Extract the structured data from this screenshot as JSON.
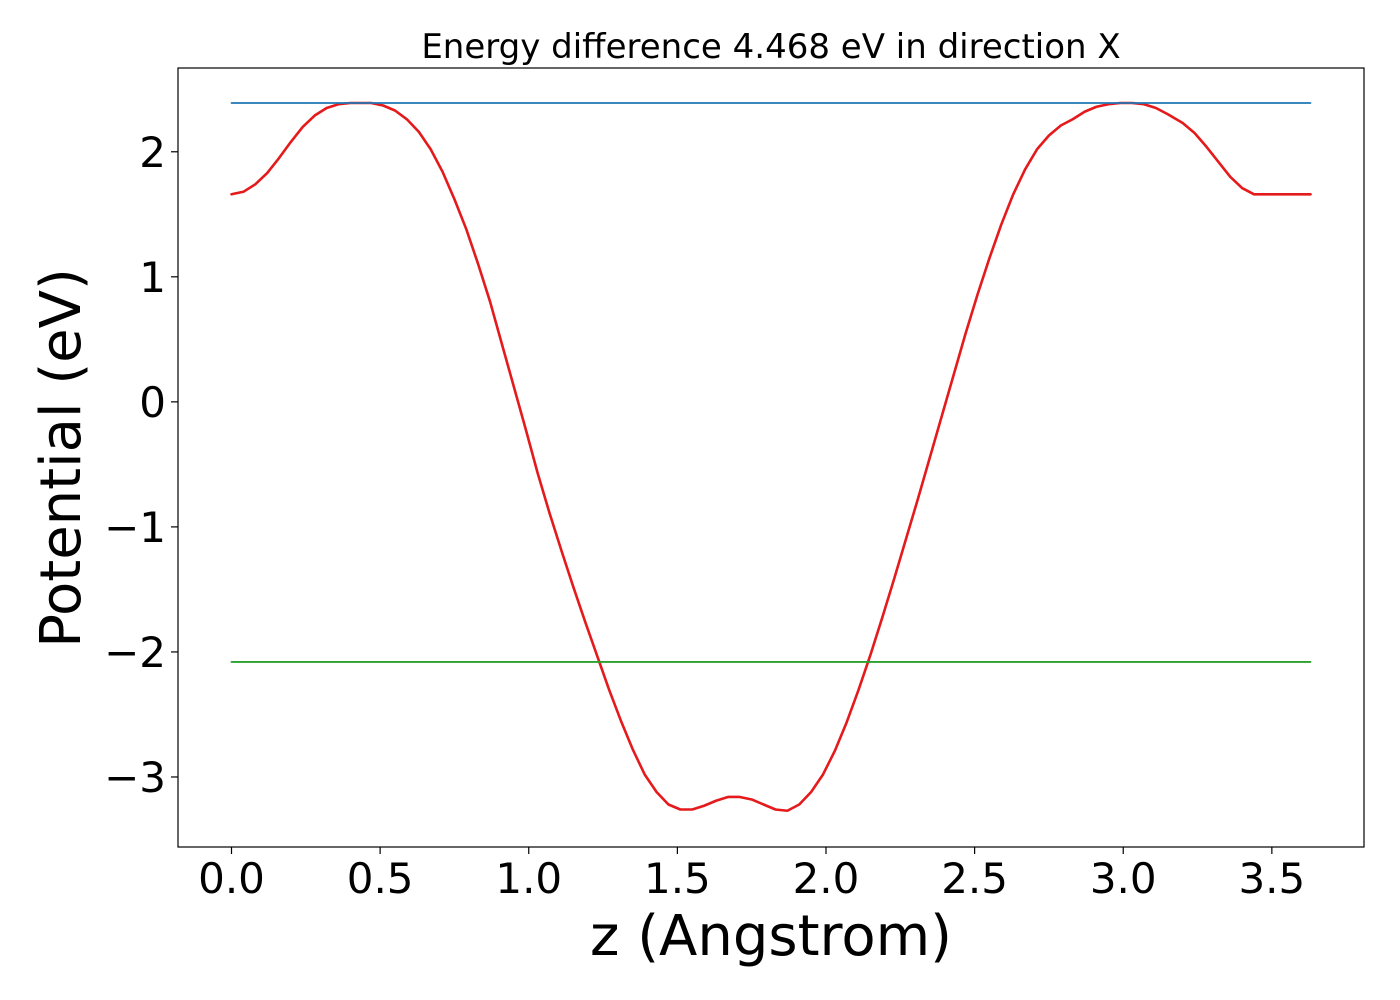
{
  "chart_data": {
    "type": "line",
    "title": "Energy difference 4.468 eV in direction X",
    "xlabel": "z (Angstrom)",
    "ylabel": "Potential (eV)",
    "xlim": [
      -0.18,
      3.81
    ],
    "ylim": [
      -3.56,
      2.67
    ],
    "x_ticks": [
      0.0,
      0.5,
      1.0,
      1.5,
      2.0,
      2.5,
      3.0,
      3.5
    ],
    "x_tick_labels": [
      "0.0",
      "0.5",
      "1.0",
      "1.5",
      "2.0",
      "2.5",
      "3.0",
      "3.5"
    ],
    "y_ticks": [
      -3,
      -2,
      -1,
      0,
      1,
      2
    ],
    "y_tick_labels": [
      "−3",
      "−2",
      "−1",
      "0",
      "1",
      "2"
    ],
    "grid": false,
    "series": [
      {
        "color": "#e41a1c",
        "x": [
          0.0,
          0.04,
          0.08,
          0.12,
          0.16,
          0.2,
          0.24,
          0.28,
          0.32,
          0.36,
          0.4,
          0.44,
          0.47,
          0.51,
          0.55,
          0.59,
          0.63,
          0.67,
          0.71,
          0.75,
          0.79,
          0.83,
          0.87,
          0.91,
          0.95,
          0.99,
          1.03,
          1.07,
          1.11,
          1.15,
          1.19,
          1.23,
          1.27,
          1.31,
          1.35,
          1.39,
          1.43,
          1.47,
          1.51,
          1.55,
          1.59,
          1.63,
          1.67,
          1.71,
          1.75,
          1.79,
          1.83,
          1.87,
          1.91,
          1.95,
          1.99,
          2.03,
          2.07,
          2.11,
          2.15,
          2.19,
          2.23,
          2.27,
          2.31,
          2.35,
          2.39,
          2.43,
          2.47,
          2.51,
          2.55,
          2.59,
          2.63,
          2.67,
          2.71,
          2.75,
          2.79,
          2.83,
          2.87,
          2.91,
          2.95,
          2.99,
          3.03,
          3.07,
          3.11,
          3.15,
          3.2,
          3.24,
          3.28,
          3.32,
          3.36,
          3.4,
          3.44,
          3.48,
          3.52,
          3.56,
          3.6,
          3.63
        ],
        "y": [
          1.66,
          1.68,
          1.74,
          1.83,
          1.95,
          2.08,
          2.2,
          2.29,
          2.35,
          2.38,
          2.39,
          2.39,
          2.39,
          2.37,
          2.33,
          2.26,
          2.16,
          2.02,
          1.84,
          1.62,
          1.38,
          1.1,
          0.8,
          0.46,
          0.12,
          -0.22,
          -0.57,
          -0.89,
          -1.19,
          -1.48,
          -1.76,
          -2.03,
          -2.3,
          -2.55,
          -2.78,
          -2.98,
          -3.12,
          -3.22,
          -3.26,
          -3.26,
          -3.23,
          -3.19,
          -3.16,
          -3.16,
          -3.18,
          -3.22,
          -3.26,
          -3.27,
          -3.22,
          -3.12,
          -2.98,
          -2.79,
          -2.56,
          -2.3,
          -2.02,
          -1.72,
          -1.41,
          -1.09,
          -0.77,
          -0.44,
          -0.11,
          0.22,
          0.55,
          0.86,
          1.15,
          1.42,
          1.66,
          1.86,
          2.02,
          2.13,
          2.21,
          2.26,
          2.32,
          2.36,
          2.38,
          2.39,
          2.39,
          2.38,
          2.35,
          2.3,
          2.23,
          2.15,
          2.04,
          1.92,
          1.8,
          1.71,
          1.66,
          1.66,
          1.66,
          1.66,
          1.66,
          1.66
        ]
      },
      {
        "color": "#1f77b4",
        "x": [
          0.0,
          3.63
        ],
        "y": [
          2.39,
          2.39
        ]
      },
      {
        "color": "#2ca02c",
        "x": [
          0.0,
          3.63
        ],
        "y": [
          -2.08,
          -2.08
        ]
      }
    ]
  }
}
